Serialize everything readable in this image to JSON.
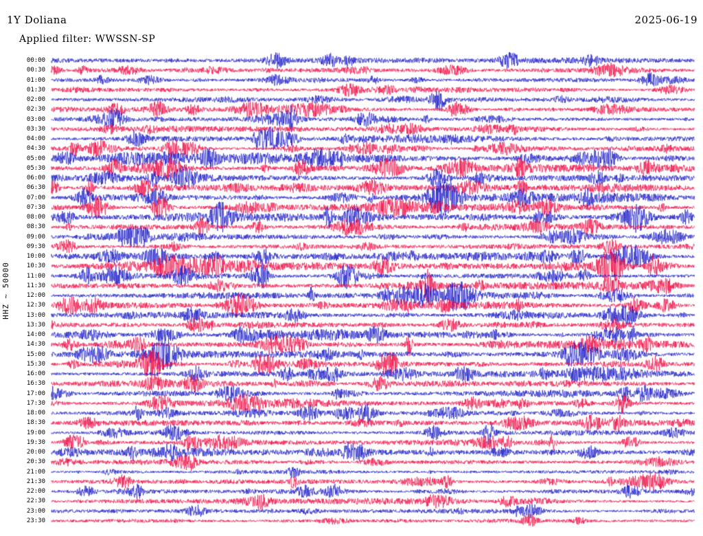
{
  "header": {
    "station": "1Y Doliana",
    "date": "2025-06-19",
    "filter": "Applied filter: WWSSN-SP"
  },
  "axis": {
    "left_label": "HHZ ~ 50000"
  },
  "colors": {
    "trace_blue": "#1f1fc8",
    "trace_red": "#ef0d45",
    "text": "#000000",
    "background": "#ffffff"
  },
  "chart_data": {
    "type": "line",
    "subtype": "helicorder-seismogram",
    "title": "1Y Doliana",
    "date": "2025-06-19",
    "filter": "WWSSN-SP",
    "channel": "HHZ",
    "scale": "50000",
    "row_duration_minutes": 30,
    "time_range": [
      "00:00",
      "23:30"
    ],
    "legend": "48 half-hour traces, colors alternate blue/red, continuous microseismic noise with event bursts",
    "rows": [
      {
        "time": "00:00",
        "color": "blue",
        "activity": 0.3,
        "events": [
          {
            "pos": 0.35,
            "amp": 9,
            "width": 10
          },
          {
            "pos": 0.71,
            "amp": 9,
            "width": 9
          },
          {
            "pos": 0.84,
            "amp": 6,
            "width": 8
          }
        ]
      },
      {
        "time": "00:30",
        "color": "red",
        "activity": 0.3,
        "events": [
          {
            "pos": 0.12,
            "amp": 5,
            "width": 12
          }
        ]
      },
      {
        "time": "01:00",
        "color": "blue",
        "activity": 0.25,
        "events": [
          {
            "pos": 0.93,
            "amp": 8,
            "width": 9
          }
        ]
      },
      {
        "time": "01:30",
        "color": "red",
        "activity": 0.3,
        "events": [
          {
            "pos": 0.465,
            "amp": 8,
            "width": 10
          }
        ]
      },
      {
        "time": "02:00",
        "color": "blue",
        "activity": 0.35
      },
      {
        "time": "02:30",
        "color": "red",
        "activity": 0.4,
        "events": [
          {
            "pos": 0.1,
            "amp": 7,
            "width": 9
          },
          {
            "pos": 0.165,
            "amp": 9,
            "width": 8
          },
          {
            "pos": 0.22,
            "amp": 6,
            "width": 8
          }
        ]
      },
      {
        "time": "03:00",
        "color": "blue",
        "activity": 0.4,
        "events": [
          {
            "pos": 0.095,
            "amp": 10,
            "width": 8
          }
        ]
      },
      {
        "time": "03:30",
        "color": "red",
        "activity": 0.45,
        "events": [
          {
            "pos": 0.56,
            "amp": 8,
            "width": 9
          }
        ]
      },
      {
        "time": "04:00",
        "color": "blue",
        "activity": 0.5,
        "events": [
          {
            "pos": 0.13,
            "amp": 9,
            "width": 8
          },
          {
            "pos": 0.335,
            "amp": 8,
            "width": 10
          }
        ]
      },
      {
        "time": "04:30",
        "color": "red",
        "activity": 0.5,
        "events": [
          {
            "pos": 0.19,
            "amp": 8,
            "width": 9
          },
          {
            "pos": 0.49,
            "amp": 8,
            "width": 9
          }
        ]
      },
      {
        "time": "05:00",
        "color": "blue",
        "activity": 0.6,
        "events": [
          {
            "pos": 0.86,
            "amp": 9,
            "width": 10
          }
        ]
      },
      {
        "time": "05:30",
        "color": "red",
        "activity": 0.6,
        "events": [
          {
            "pos": 0.39,
            "amp": 9,
            "width": 9
          }
        ]
      },
      {
        "time": "06:00",
        "color": "blue",
        "activity": 0.6,
        "events": [
          {
            "pos": 0.6,
            "amp": 9,
            "width": 10
          }
        ]
      },
      {
        "time": "06:30",
        "color": "red",
        "activity": 0.55,
        "events": [
          {
            "pos": 0.145,
            "amp": 10,
            "width": 9
          }
        ]
      },
      {
        "time": "07:00",
        "color": "blue",
        "activity": 0.6,
        "events": [
          {
            "pos": 0.165,
            "amp": 10,
            "width": 9
          }
        ]
      },
      {
        "time": "07:30",
        "color": "red",
        "activity": 0.6,
        "events": [
          {
            "pos": 0.17,
            "amp": 11,
            "width": 8
          },
          {
            "pos": 0.77,
            "amp": 8,
            "width": 9
          }
        ]
      },
      {
        "time": "08:00",
        "color": "blue",
        "activity": 0.6,
        "events": [
          {
            "pos": 0.47,
            "amp": 9,
            "width": 9
          },
          {
            "pos": 0.91,
            "amp": 10,
            "width": 10
          }
        ]
      },
      {
        "time": "08:30",
        "color": "red",
        "activity": 0.55,
        "events": [
          {
            "pos": 0.84,
            "amp": 9,
            "width": 9
          }
        ]
      },
      {
        "time": "09:00",
        "color": "blue",
        "activity": 0.6,
        "events": [
          {
            "pos": 0.14,
            "amp": 10,
            "width": 9
          },
          {
            "pos": 0.81,
            "amp": 10,
            "width": 10
          }
        ]
      },
      {
        "time": "09:30",
        "color": "red",
        "activity": 0.55,
        "events": [
          {
            "pos": 0.02,
            "amp": 8,
            "width": 9
          },
          {
            "pos": 0.87,
            "amp": 9,
            "width": 10
          }
        ]
      },
      {
        "time": "10:00",
        "color": "blue",
        "activity": 0.55,
        "events": [
          {
            "pos": 0.33,
            "amp": 9,
            "width": 9
          }
        ]
      },
      {
        "time": "10:30",
        "color": "red",
        "activity": 0.6,
        "events": [
          {
            "pos": 0.87,
            "amp": 24,
            "width": 14
          }
        ]
      },
      {
        "time": "11:00",
        "color": "blue",
        "activity": 0.55,
        "events": [
          {
            "pos": 0.055,
            "amp": 9,
            "width": 8
          },
          {
            "pos": 0.32,
            "amp": 9,
            "width": 9
          }
        ]
      },
      {
        "time": "11:30",
        "color": "red",
        "activity": 0.5,
        "events": [
          {
            "pos": 0.26,
            "amp": 8,
            "width": 9
          }
        ]
      },
      {
        "time": "12:00",
        "color": "blue",
        "activity": 0.5,
        "events": [
          {
            "pos": 0.58,
            "amp": 9,
            "width": 10
          }
        ]
      },
      {
        "time": "12:30",
        "color": "red",
        "activity": 0.55,
        "events": [
          {
            "pos": 0.065,
            "amp": 8,
            "width": 10
          },
          {
            "pos": 0.955,
            "amp": 9,
            "width": 9
          }
        ]
      },
      {
        "time": "13:00",
        "color": "blue",
        "activity": 0.5,
        "events": [
          {
            "pos": 0.22,
            "amp": 9,
            "width": 9
          },
          {
            "pos": 0.87,
            "amp": 8,
            "width": 9
          }
        ]
      },
      {
        "time": "13:30",
        "color": "red",
        "activity": 0.55,
        "events": [
          {
            "pos": 0.225,
            "amp": 10,
            "width": 9
          },
          {
            "pos": 0.62,
            "amp": 8,
            "width": 10
          }
        ]
      },
      {
        "time": "14:00",
        "color": "blue",
        "activity": 0.6,
        "events": [
          {
            "pos": 0.295,
            "amp": 10,
            "width": 9
          },
          {
            "pos": 0.505,
            "amp": 9,
            "width": 10
          }
        ]
      },
      {
        "time": "14:30",
        "color": "red",
        "activity": 0.6,
        "events": [
          {
            "pos": 0.135,
            "amp": 9,
            "width": 9
          },
          {
            "pos": 0.84,
            "amp": 9,
            "width": 10
          }
        ]
      },
      {
        "time": "15:00",
        "color": "blue",
        "activity": 0.65,
        "events": [
          {
            "pos": 0.18,
            "amp": 10,
            "width": 12
          }
        ]
      },
      {
        "time": "15:30",
        "color": "red",
        "activity": 0.6,
        "events": [
          {
            "pos": 0.52,
            "amp": 9,
            "width": 9
          }
        ]
      },
      {
        "time": "16:00",
        "color": "blue",
        "activity": 0.55,
        "events": [
          {
            "pos": 0.225,
            "amp": 9,
            "width": 9
          },
          {
            "pos": 0.64,
            "amp": 9,
            "width": 9
          }
        ]
      },
      {
        "time": "16:30",
        "color": "red",
        "activity": 0.55,
        "events": [
          {
            "pos": 0.51,
            "amp": 9,
            "width": 10
          }
        ]
      },
      {
        "time": "17:00",
        "color": "blue",
        "activity": 0.6,
        "events": [
          {
            "pos": 0.0,
            "amp": 10,
            "width": 8
          },
          {
            "pos": 0.27,
            "amp": 9,
            "width": 9
          }
        ]
      },
      {
        "time": "17:30",
        "color": "red",
        "activity": 0.55,
        "events": [
          {
            "pos": 0.655,
            "amp": 8,
            "width": 9
          }
        ]
      },
      {
        "time": "18:00",
        "color": "blue",
        "activity": 0.5,
        "events": [
          {
            "pos": 0.4,
            "amp": 9,
            "width": 9
          },
          {
            "pos": 0.455,
            "amp": 9,
            "width": 9
          }
        ]
      },
      {
        "time": "18:30",
        "color": "red",
        "activity": 0.45,
        "events": [
          {
            "pos": 0.84,
            "amp": 8,
            "width": 10
          }
        ]
      },
      {
        "time": "19:00",
        "color": "blue",
        "activity": 0.5,
        "events": [
          {
            "pos": 0.595,
            "amp": 9,
            "width": 9
          }
        ]
      },
      {
        "time": "19:30",
        "color": "red",
        "activity": 0.5,
        "events": [
          {
            "pos": 0.035,
            "amp": 9,
            "width": 10
          },
          {
            "pos": 0.9,
            "amp": 8,
            "width": 9
          }
        ]
      },
      {
        "time": "20:00",
        "color": "blue",
        "activity": 0.45,
        "events": [
          {
            "pos": 0.185,
            "amp": 8,
            "width": 9
          },
          {
            "pos": 0.475,
            "amp": 8,
            "width": 9
          },
          {
            "pos": 0.835,
            "amp": 7,
            "width": 9
          }
        ]
      },
      {
        "time": "20:30",
        "color": "red",
        "activity": 0.25
      },
      {
        "time": "21:00",
        "color": "blue",
        "activity": 0.2
      },
      {
        "time": "21:30",
        "color": "red",
        "activity": 0.3,
        "events": [
          {
            "pos": 0.11,
            "amp": 8,
            "width": 10
          }
        ]
      },
      {
        "time": "22:00",
        "color": "blue",
        "activity": 0.3,
        "events": [
          {
            "pos": 0.44,
            "amp": 8,
            "width": 9
          },
          {
            "pos": 0.9,
            "amp": 8,
            "width": 9
          }
        ]
      },
      {
        "time": "22:30",
        "color": "red",
        "activity": 0.35,
        "events": [
          {
            "pos": 0.6,
            "amp": 9,
            "width": 12
          },
          {
            "pos": 0.71,
            "amp": 7,
            "width": 9
          }
        ]
      },
      {
        "time": "23:00",
        "color": "blue",
        "activity": 0.3,
        "events": [
          {
            "pos": 0.225,
            "amp": 7,
            "width": 9
          },
          {
            "pos": 0.745,
            "amp": 7,
            "width": 9
          }
        ]
      },
      {
        "time": "23:30",
        "color": "red",
        "activity": 0.25
      }
    ]
  }
}
